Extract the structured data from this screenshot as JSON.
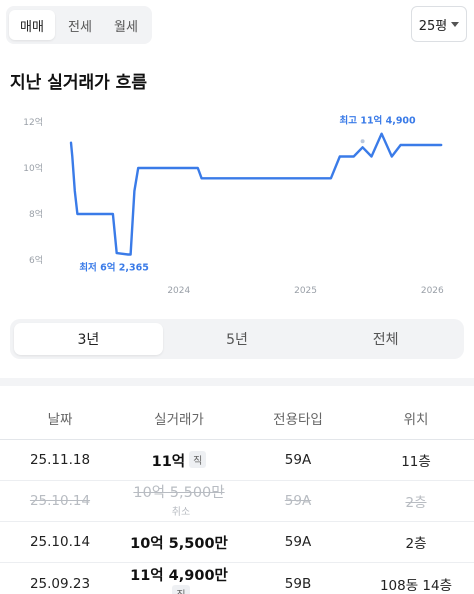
{
  "deal_tabs": [
    "매매",
    "전세",
    "월세"
  ],
  "area_select": {
    "value": "25평"
  },
  "section_title": "지난 실거래가 흐름",
  "period_tabs": [
    "3년",
    "5년",
    "전체"
  ],
  "chart_data": {
    "type": "line",
    "y_ticks": [
      "12억",
      "10억",
      "8억",
      "6억"
    ],
    "x_ticks": [
      "2024",
      "2025",
      "2026"
    ],
    "ylim": [
      6,
      12
    ],
    "line_color": "#3a7be8",
    "max_label": "최고 11억 4,900",
    "min_label": "최저 6억 2,365",
    "series": [
      {
        "values": [
          [
            2023.15,
            11.1
          ],
          [
            2023.16,
            10.5
          ],
          [
            2023.18,
            9.0
          ],
          [
            2023.2,
            8.0
          ],
          [
            2023.48,
            8.0
          ],
          [
            2023.51,
            6.3
          ],
          [
            2023.6,
            6.24
          ],
          [
            2023.62,
            6.24
          ],
          [
            2023.65,
            9.0
          ],
          [
            2023.68,
            10.0
          ],
          [
            2024.15,
            10.0
          ],
          [
            2024.18,
            9.55
          ],
          [
            2024.45,
            9.55
          ],
          [
            2024.75,
            9.55
          ],
          [
            2025.2,
            9.55
          ],
          [
            2025.27,
            10.5
          ],
          [
            2025.38,
            10.5
          ],
          [
            2025.45,
            10.9
          ],
          [
            2025.52,
            10.5
          ],
          [
            2025.6,
            11.49
          ],
          [
            2025.68,
            10.5
          ],
          [
            2025.75,
            11.0
          ],
          [
            2026.07,
            11.0
          ]
        ]
      }
    ]
  },
  "table": {
    "headers": [
      "날짜",
      "실거래가",
      "전용타입",
      "위치"
    ],
    "rows": [
      {
        "date": "25.11.18",
        "price": "11억",
        "badge": "직",
        "type": "59A",
        "floor": "11층"
      },
      {
        "date": "25.10.14",
        "price": "10억 5,500만",
        "badge": "취소",
        "type": "59A",
        "floor": "2층"
      },
      {
        "date": "25.10.14",
        "price": "10억 5,500만",
        "badge": "",
        "type": "59A",
        "floor": "2층"
      },
      {
        "date": "25.09.23",
        "price": "11억 4,900만",
        "badge": "직",
        "type": "59B",
        "floor": "108동 14층"
      }
    ]
  }
}
